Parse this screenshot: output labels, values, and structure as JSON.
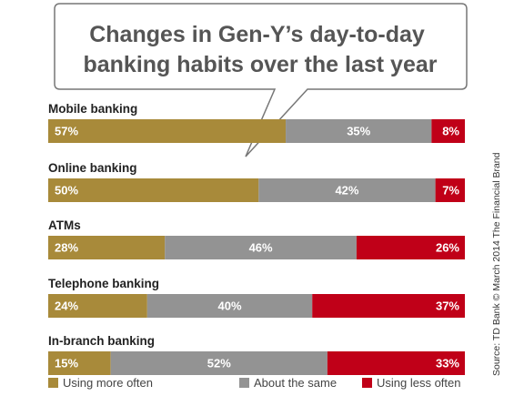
{
  "chart_data": {
    "type": "bar",
    "orientation": "horizontal-stacked-100",
    "title_lines": [
      "Changes in Gen-Y’s day-to-day",
      "banking habits over the last year"
    ],
    "categories": [
      "Mobile banking",
      "Online banking",
      "ATMs",
      "Telephone banking",
      "In-branch banking"
    ],
    "series": [
      {
        "name": "Using more often",
        "color": "#a88a3a",
        "values": [
          57,
          50,
          28,
          24,
          15
        ]
      },
      {
        "name": "About the same",
        "color": "#939393",
        "values": [
          35,
          42,
          46,
          40,
          52
        ]
      },
      {
        "name": "Using less often",
        "color": "#c00018",
        "values": [
          8,
          7,
          26,
          37,
          33
        ]
      }
    ],
    "value_suffix": "%",
    "legend_position": "bottom",
    "source": "Source: TD Bank © March 2014 The Financial Brand"
  }
}
